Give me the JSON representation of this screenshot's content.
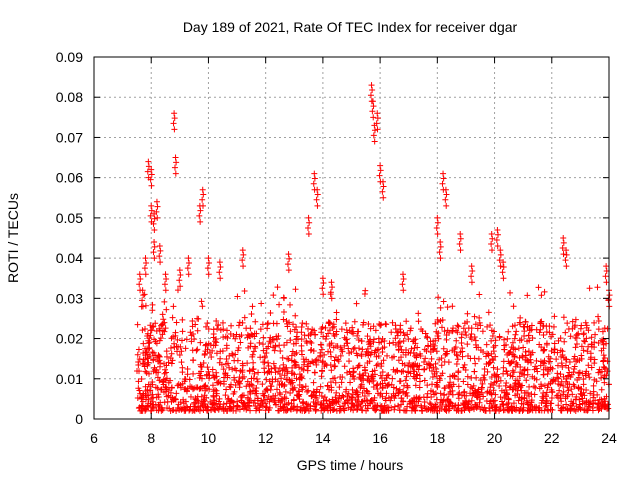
{
  "chart_data": {
    "type": "scatter",
    "title": "Day 189 of 2021, Rate Of TEC Index for receiver dgar",
    "xlabel": "GPS time / hours",
    "ylabel": "ROTI / TECUs",
    "xlim": [
      6,
      24
    ],
    "ylim": [
      0,
      0.09
    ],
    "xticks": [
      "6",
      "8",
      "10",
      "12",
      "14",
      "16",
      "18",
      "20",
      "22",
      "24"
    ],
    "yticks": [
      "0",
      "0.01",
      "0.02",
      "0.03",
      "0.04",
      "0.05",
      "0.06",
      "0.07",
      "0.08",
      "0.09"
    ],
    "grid": true,
    "marker": "+",
    "color": "#ff0000",
    "series": [
      {
        "name": "ROTI",
        "x_range": [
          7.5,
          24.0
        ],
        "baseline_y_range": [
          0.002,
          0.03
        ],
        "x": [
          7.6,
          7.7,
          7.8,
          7.9,
          8.0,
          8.0,
          8.1,
          8.1,
          8.2,
          8.3,
          8.4,
          8.5,
          8.8,
          8.85,
          9.0,
          9.3,
          9.7,
          9.8,
          10.0,
          10.4,
          11.2,
          12.8,
          13.5,
          13.7,
          13.8,
          14.0,
          14.3,
          15.7,
          15.75,
          15.8,
          15.9,
          16.0,
          16.1,
          16.8,
          18.0,
          18.1,
          18.2,
          18.3,
          18.8,
          19.2,
          19.9,
          20.1,
          20.2,
          20.3,
          22.4,
          22.5,
          23.9,
          24.0
        ],
        "y": [
          0.036,
          0.032,
          0.04,
          0.064,
          0.062,
          0.053,
          0.051,
          0.044,
          0.054,
          0.043,
          0.026,
          0.036,
          0.076,
          0.065,
          0.037,
          0.04,
          0.053,
          0.057,
          0.04,
          0.039,
          0.042,
          0.041,
          0.05,
          0.061,
          0.057,
          0.035,
          0.034,
          0.083,
          0.079,
          0.073,
          0.076,
          0.063,
          0.059,
          0.036,
          0.05,
          0.044,
          0.061,
          0.057,
          0.046,
          0.038,
          0.046,
          0.047,
          0.042,
          0.039,
          0.045,
          0.042,
          0.038,
          0.032
        ]
      }
    ]
  }
}
